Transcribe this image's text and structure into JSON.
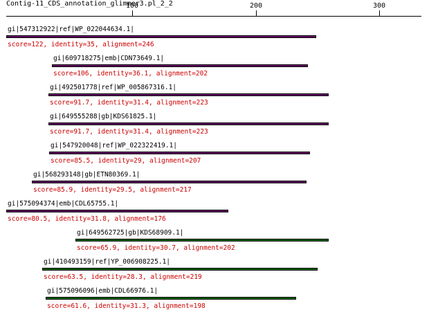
{
  "title": "Contig-11_CDS_annotation_glimmer3.pl_2_2",
  "axis": {
    "ticks": [
      "100",
      "200",
      "300"
    ]
  },
  "colors": {
    "purple": "#660066",
    "green": "#006600",
    "score_text": "#cc0000"
  },
  "hits": [
    {
      "label": "gi|547312922|ref|WP_022044634.1|",
      "score": "score=122, identity=35, alignment=246",
      "start": 0,
      "end": 251,
      "color": "#660066"
    },
    {
      "label": "gi|609718275|emb|CDN73649.1|",
      "score": "score=106, identity=36.1, alignment=202",
      "start": 37,
      "end": 244,
      "color": "#660066"
    },
    {
      "label": "gi|492501778|ref|WP_005867316.1|",
      "score": "score=91.7, identity=31.4, alignment=223",
      "start": 34,
      "end": 261,
      "color": "#660066"
    },
    {
      "label": "gi|649555288|gb|KDS61825.1|",
      "score": "score=91.7, identity=31.4, alignment=223",
      "start": 34,
      "end": 261,
      "color": "#660066"
    },
    {
      "label": "gi|547920048|ref|WP_022322419.1|",
      "score": "score=85.5, identity=29, alignment=207",
      "start": 35,
      "end": 246,
      "color": "#660066"
    },
    {
      "label": "gi|568293148|gb|ETN80369.1|",
      "score": "score=85.9, identity=29.5, alignment=217",
      "start": 21,
      "end": 243,
      "color": "#660066"
    },
    {
      "label": "gi|575094374|emb|CDL65755.1|",
      "score": "score=80.5, identity=31.8, alignment=176",
      "start": 0,
      "end": 180,
      "color": "#660066"
    },
    {
      "label": "gi|649562725|gb|KDS68909.1|",
      "score": "score=65.9, identity=30.7, alignment=202",
      "start": 56,
      "end": 261,
      "color": "#006600"
    },
    {
      "label": "gi|410493159|ref|YP_006908225.1|",
      "score": "score=63.5, identity=28.3, alignment=219",
      "start": 29,
      "end": 252,
      "color": "#006600"
    },
    {
      "label": "gi|575096096|emb|CDL66976.1|",
      "score": "score=61.6, identity=31.3, alignment=198",
      "start": 32,
      "end": 235,
      "color": "#006600"
    }
  ]
}
